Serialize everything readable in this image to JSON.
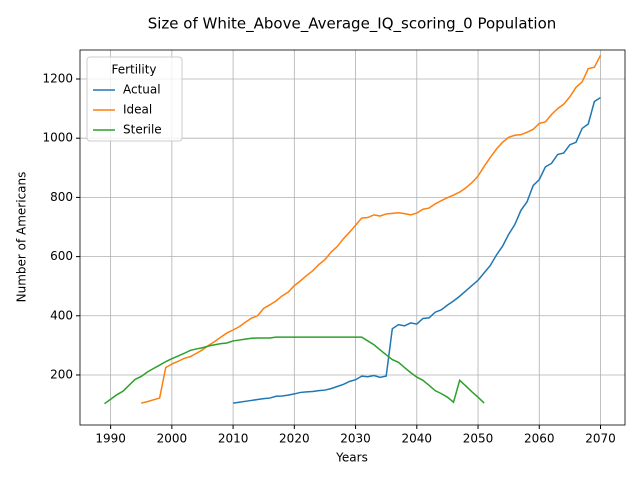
{
  "chart_data": {
    "type": "line",
    "title": "Size of White_Above_Average_IQ_scoring_0 Population",
    "x_label": "Years",
    "y_label": "Number of Americans",
    "legend_title": "Fertility",
    "legend_position": "upper-left",
    "grid": true,
    "x": [
      1989,
      1990,
      1991,
      1992,
      1993,
      1994,
      1995,
      1996,
      1997,
      1998,
      1999,
      2000,
      2001,
      2002,
      2003,
      2004,
      2005,
      2006,
      2007,
      2008,
      2009,
      2010,
      2011,
      2012,
      2013,
      2014,
      2015,
      2016,
      2017,
      2018,
      2019,
      2020,
      2021,
      2022,
      2023,
      2024,
      2025,
      2026,
      2027,
      2028,
      2029,
      2030,
      2031,
      2032,
      2033,
      2034,
      2035,
      2036,
      2037,
      2038,
      2039,
      2040,
      2041,
      2042,
      2043,
      2044,
      2045,
      2046,
      2047,
      2048,
      2049,
      2050,
      2051,
      2052,
      2053,
      2054,
      2055,
      2056,
      2057,
      2058,
      2059,
      2060,
      2061,
      2062,
      2063,
      2064,
      2065,
      2066,
      2067,
      2068,
      2069,
      2070
    ],
    "series": [
      {
        "name": "Actual",
        "color": "#1f77b4",
        "values": [
          null,
          null,
          null,
          null,
          null,
          null,
          null,
          null,
          null,
          null,
          null,
          null,
          null,
          null,
          null,
          null,
          null,
          null,
          null,
          null,
          null,
          105,
          108,
          111,
          114,
          117,
          120,
          122,
          128,
          129,
          132,
          136,
          141,
          143,
          144,
          147,
          149,
          154,
          161,
          168,
          178,
          184,
          196,
          194,
          198,
          192,
          196,
          356,
          370,
          366,
          376,
          372,
          391,
          393,
          412,
          420,
          436,
          450,
          466,
          484,
          502,
          520,
          545,
          570,
          605,
          635,
          675,
          708,
          756,
          785,
          840,
          860,
          903,
          915,
          945,
          950,
          978,
          986,
          1033,
          1048,
          1124,
          1137
        ]
      },
      {
        "name": "Ideal",
        "color": "#ff7f0e",
        "values": [
          null,
          null,
          null,
          null,
          null,
          null,
          105,
          110,
          116,
          122,
          225,
          237,
          246,
          256,
          262,
          273,
          285,
          300,
          313,
          328,
          342,
          352,
          363,
          378,
          392,
          400,
          425,
          437,
          450,
          467,
          480,
          502,
          518,
          536,
          552,
          573,
          590,
          615,
          634,
          660,
          682,
          706,
          730,
          732,
          741,
          737,
          744,
          746,
          748,
          745,
          741,
          747,
          760,
          764,
          778,
          789,
          799,
          808,
          818,
          832,
          850,
          872,
          905,
          935,
          963,
          986,
          1003,
          1010,
          1012,
          1020,
          1030,
          1050,
          1055,
          1080,
          1100,
          1115,
          1140,
          1172,
          1190,
          1235,
          1240,
          1280
        ]
      },
      {
        "name": "Sterile",
        "color": "#2ca02c",
        "values": [
          103,
          118,
          133,
          145,
          165,
          185,
          195,
          210,
          222,
          233,
          245,
          255,
          264,
          273,
          283,
          288,
          292,
          298,
          302,
          306,
          308,
          315,
          318,
          321,
          324,
          325,
          325,
          325,
          328,
          328,
          328,
          328,
          328,
          328,
          328,
          328,
          328,
          328,
          328,
          328,
          328,
          328,
          328,
          315,
          302,
          285,
          268,
          252,
          243,
          225,
          208,
          193,
          182,
          165,
          147,
          137,
          125,
          108,
          182,
          163,
          143,
          125,
          105,
          null,
          null,
          null,
          null,
          null,
          null,
          null,
          null,
          null,
          null,
          null,
          null,
          null,
          null,
          null,
          null,
          null,
          null,
          null
        ]
      }
    ],
    "xlim": [
      1985,
      2074
    ],
    "ylim": [
      31,
      1298
    ],
    "xticks": [
      1990,
      2000,
      2010,
      2020,
      2030,
      2040,
      2050,
      2060,
      2070
    ],
    "yticks": [
      200,
      400,
      600,
      800,
      1000,
      1200
    ]
  }
}
